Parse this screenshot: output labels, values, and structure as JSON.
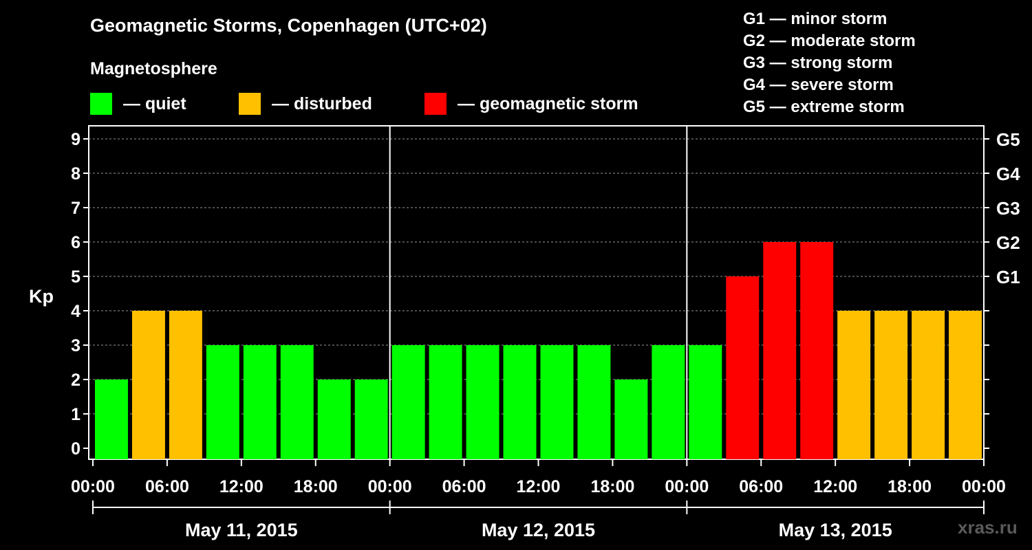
{
  "title": "Geomagnetic Storms, Copenhagen (UTC+02)",
  "legend": {
    "heading": "Magnetosphere",
    "items": [
      {
        "label": "— quiet",
        "color": "#00ff00"
      },
      {
        "label": "— disturbed",
        "color": "#ffc000"
      },
      {
        "label": "— geomagnetic storm",
        "color": "#ff0000"
      }
    ]
  },
  "storm_scale": [
    "G1 — minor storm",
    "G2 — moderate storm",
    "G3 — strong storm",
    "G4 — severe storm",
    "G5 — extreme storm"
  ],
  "watermark": "xras.ru",
  "chart_data": {
    "type": "bar",
    "ylabel": "Kp",
    "ylim": [
      0,
      9
    ],
    "yticks": [
      "0",
      "1",
      "2",
      "3",
      "4",
      "5",
      "6",
      "7",
      "8",
      "9"
    ],
    "right_axis_labels": [
      {
        "kp": 5,
        "label": "G1"
      },
      {
        "kp": 6,
        "label": "G2"
      },
      {
        "kp": 7,
        "label": "G3"
      },
      {
        "kp": 8,
        "label": "G4"
      },
      {
        "kp": 9,
        "label": "G5"
      }
    ],
    "grid": "horizontal dashed",
    "xtick_labels": [
      "00:00",
      "06:00",
      "12:00",
      "18:00",
      "00:00",
      "06:00",
      "12:00",
      "18:00",
      "00:00",
      "06:00",
      "12:00",
      "18:00",
      "00:00"
    ],
    "days": [
      "May 11, 2015",
      "May 12, 2015",
      "May 13, 2015"
    ],
    "interval_hours": 3,
    "bar_start_times": [
      "May 11 00:00",
      "03:00",
      "06:00",
      "09:00",
      "12:00",
      "15:00",
      "18:00",
      "21:00",
      "May 12 00:00",
      "03:00",
      "06:00",
      "09:00",
      "12:00",
      "15:00",
      "18:00",
      "21:00",
      "May 13 00:00",
      "03:00",
      "06:00",
      "09:00",
      "12:00",
      "15:00",
      "18:00",
      "21:00"
    ],
    "values": [
      2,
      4,
      4,
      3,
      3,
      3,
      2,
      2,
      3,
      3,
      3,
      3,
      3,
      3,
      2,
      3,
      3,
      5,
      6,
      6,
      4,
      4,
      4,
      4
    ],
    "color_rules": {
      "quiet_max": 3,
      "disturbed": 4,
      "storm_min": 5
    }
  }
}
